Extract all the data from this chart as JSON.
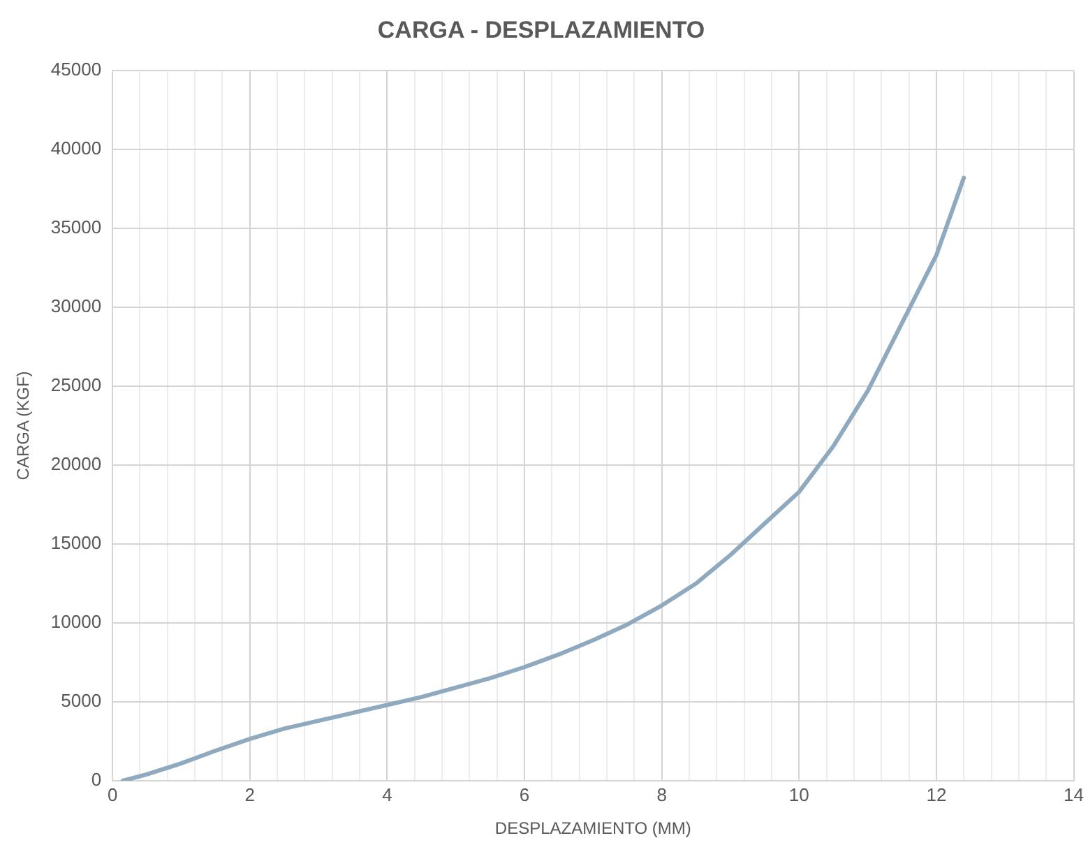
{
  "chart_data": {
    "type": "line",
    "title": "CARGA - DESPLAZAMIENTO",
    "xlabel": "DESPLAZAMIENTO (MM)",
    "ylabel": "CARGA (KGF)",
    "x": [
      0.15,
      0.5,
      1,
      1.5,
      2,
      2.5,
      3,
      3.5,
      4,
      4.5,
      5,
      5.5,
      6,
      6.5,
      7,
      7.5,
      8,
      8.5,
      9,
      9.5,
      10,
      10.5,
      11,
      11.5,
      12,
      12.4
    ],
    "series": [
      {
        "color": "#8fa9bf",
        "values": [
          0,
          400,
          1100,
          1900,
          2650,
          3300,
          3800,
          4300,
          4800,
          5300,
          5900,
          6500,
          7200,
          8000,
          8900,
          9900,
          11100,
          12500,
          14300,
          16300,
          18300,
          21200,
          24700,
          29000,
          33300,
          38200
        ]
      }
    ],
    "xlim": [
      0,
      14
    ],
    "xticks": [
      0,
      {
        "value": 0.4,
        "label": null
      },
      {
        "value": 0.8,
        "label": null
      },
      {
        "value": 1.2,
        "label": null
      },
      {
        "value": 1.6,
        "label": null
      },
      2,
      {
        "value": 2.4,
        "label": null
      },
      {
        "value": 2.8,
        "label": null
      },
      {
        "value": 3.2,
        "label": null
      },
      {
        "value": 3.6,
        "label": null
      },
      4,
      {
        "value": 4.4,
        "label": null
      },
      {
        "value": 4.8,
        "label": null
      },
      {
        "value": 5.2,
        "label": null
      },
      {
        "value": 5.6,
        "label": null
      },
      6,
      {
        "value": 6.4,
        "label": null
      },
      {
        "value": 6.8,
        "label": null
      },
      {
        "value": 7.2,
        "label": null
      },
      {
        "value": 7.6,
        "label": null
      },
      8,
      {
        "value": 8.4,
        "label": null
      },
      {
        "value": 8.8,
        "label": null
      },
      {
        "value": 9.2,
        "label": null
      },
      {
        "value": 9.6,
        "label": null
      },
      10,
      {
        "value": 10.4,
        "label": null
      },
      {
        "value": 10.8,
        "label": null
      },
      {
        "value": 11.2,
        "label": null
      },
      {
        "value": 11.6,
        "label": null
      },
      12,
      {
        "value": 12.4,
        "label": null
      },
      {
        "value": 12.8,
        "label": null
      },
      {
        "value": 13.2,
        "label": null
      },
      {
        "value": 13.6,
        "label": null
      },
      14
    ],
    "ylim": [
      0,
      45000
    ],
    "yticks": [
      0,
      5000,
      10000,
      15000,
      20000,
      25000,
      30000,
      35000,
      40000,
      45000
    ],
    "grid": true,
    "legend": false,
    "marker": "none",
    "line_style": "solid"
  }
}
